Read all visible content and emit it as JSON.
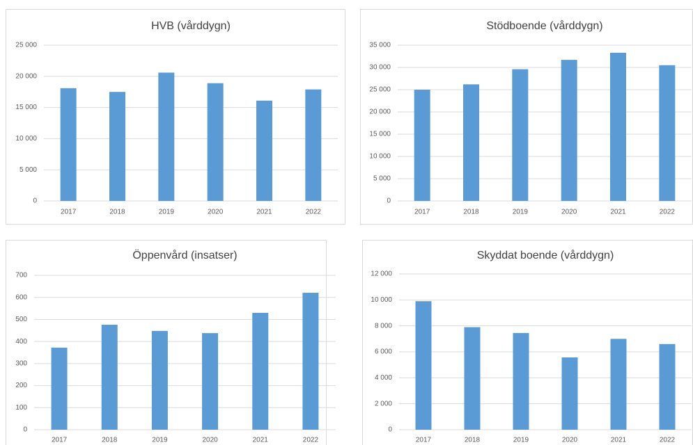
{
  "chart_data": [
    {
      "type": "bar",
      "title": "HVB (vårddygn)",
      "categories": [
        "2017",
        "2018",
        "2019",
        "2020",
        "2021",
        "2022"
      ],
      "values": [
        18100,
        17500,
        20600,
        18900,
        16100,
        17900
      ],
      "color": "#5b9bd5",
      "ylim": [
        0,
        25000
      ],
      "yticks": [
        0,
        {
          "value": 5000,
          "label": "5 000"
        },
        {
          "value": 10000,
          "label": "10 000"
        },
        {
          "value": 15000,
          "label": "15 000"
        },
        {
          "value": 20000,
          "label": "20 000"
        },
        {
          "value": 25000,
          "label": "25 000"
        }
      ],
      "grid": true
    },
    {
      "type": "bar",
      "title": "Stödboende (vårddygn)",
      "categories": [
        "2017",
        "2018",
        "2019",
        "2020",
        "2021",
        "2022"
      ],
      "values": [
        25000,
        26200,
        29600,
        31700,
        33300,
        30500
      ],
      "color": "#5b9bd5",
      "ylim": [
        0,
        35000
      ],
      "yticks": [
        0,
        {
          "value": 5000,
          "label": "5 000"
        },
        {
          "value": 10000,
          "label": "10 000"
        },
        {
          "value": 15000,
          "label": "15 000"
        },
        {
          "value": 20000,
          "label": "20 000"
        },
        {
          "value": 25000,
          "label": "25 000"
        },
        {
          "value": 30000,
          "label": "30 000"
        },
        {
          "value": 35000,
          "label": "35 000"
        }
      ],
      "grid": true
    },
    {
      "type": "bar",
      "title": "Öppenvård (insatser)",
      "categories": [
        "2017",
        "2018",
        "2019",
        "2020",
        "2021",
        "2022"
      ],
      "values": [
        372,
        476,
        448,
        438,
        530,
        621
      ],
      "color": "#5b9bd5",
      "ylim": [
        0,
        700
      ],
      "yticks": [
        0,
        100,
        200,
        300,
        400,
        500,
        600,
        700
      ],
      "grid": true
    },
    {
      "type": "bar",
      "title": "Skyddat boende (vårddygn)",
      "categories": [
        "2017",
        "2018",
        "2019",
        "2020",
        "2021",
        "2022"
      ],
      "values": [
        9900,
        7900,
        7450,
        5570,
        7000,
        6600
      ],
      "color": "#5b9bd5",
      "ylim": [
        0,
        12000
      ],
      "yticks": [
        0,
        {
          "value": 2000,
          "label": "2 000"
        },
        {
          "value": 4000,
          "label": "4 000"
        },
        {
          "value": 6000,
          "label": "6 000"
        },
        {
          "value": 8000,
          "label": "8 000"
        },
        {
          "value": 10000,
          "label": "10 000"
        },
        {
          "value": 12000,
          "label": "12 000"
        }
      ],
      "grid": true
    }
  ]
}
